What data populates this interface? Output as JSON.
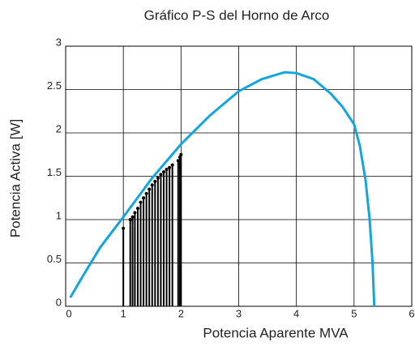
{
  "chart_data": {
    "type": "line",
    "title": "Gráfico P-S del Horno de Arco",
    "x_label": "Potencia Aparente MVA",
    "y_label": "Potencia Activa [W]",
    "xlim": [
      0,
      6
    ],
    "ylim": [
      0,
      3
    ],
    "xticks": [
      0,
      1,
      2,
      3,
      4,
      5,
      6
    ],
    "yticks": [
      0,
      0.5,
      1,
      1.5,
      2,
      2.5,
      3
    ],
    "grid": true,
    "series": [
      {
        "kind": "line",
        "color": "#14a5e0",
        "x": [
          0.08,
          0.3,
          0.6,
          1.0,
          1.5,
          2.0,
          2.5,
          3.0,
          3.4,
          3.8,
          4.0,
          4.3,
          4.6,
          4.8,
          5.0,
          5.1,
          5.2,
          5.27,
          5.32,
          5.35
        ],
        "values": [
          0.1,
          0.35,
          0.68,
          1.03,
          1.48,
          1.87,
          2.2,
          2.48,
          2.62,
          2.7,
          2.69,
          2.62,
          2.45,
          2.3,
          2.1,
          1.85,
          1.45,
          1.0,
          0.5,
          0.0
        ]
      },
      {
        "kind": "stem",
        "color": "#000000",
        "x": [
          1.0,
          1.12,
          1.16,
          1.2,
          1.25,
          1.3,
          1.35,
          1.4,
          1.45,
          1.5,
          1.55,
          1.6,
          1.65,
          1.7,
          1.75,
          1.8,
          1.85,
          1.95,
          1.98,
          2.0
        ],
        "values": [
          0.9,
          1.0,
          1.03,
          1.08,
          1.13,
          1.2,
          1.25,
          1.3,
          1.35,
          1.4,
          1.44,
          1.48,
          1.52,
          1.55,
          1.58,
          1.6,
          1.63,
          1.68,
          1.72,
          1.75
        ]
      }
    ]
  }
}
